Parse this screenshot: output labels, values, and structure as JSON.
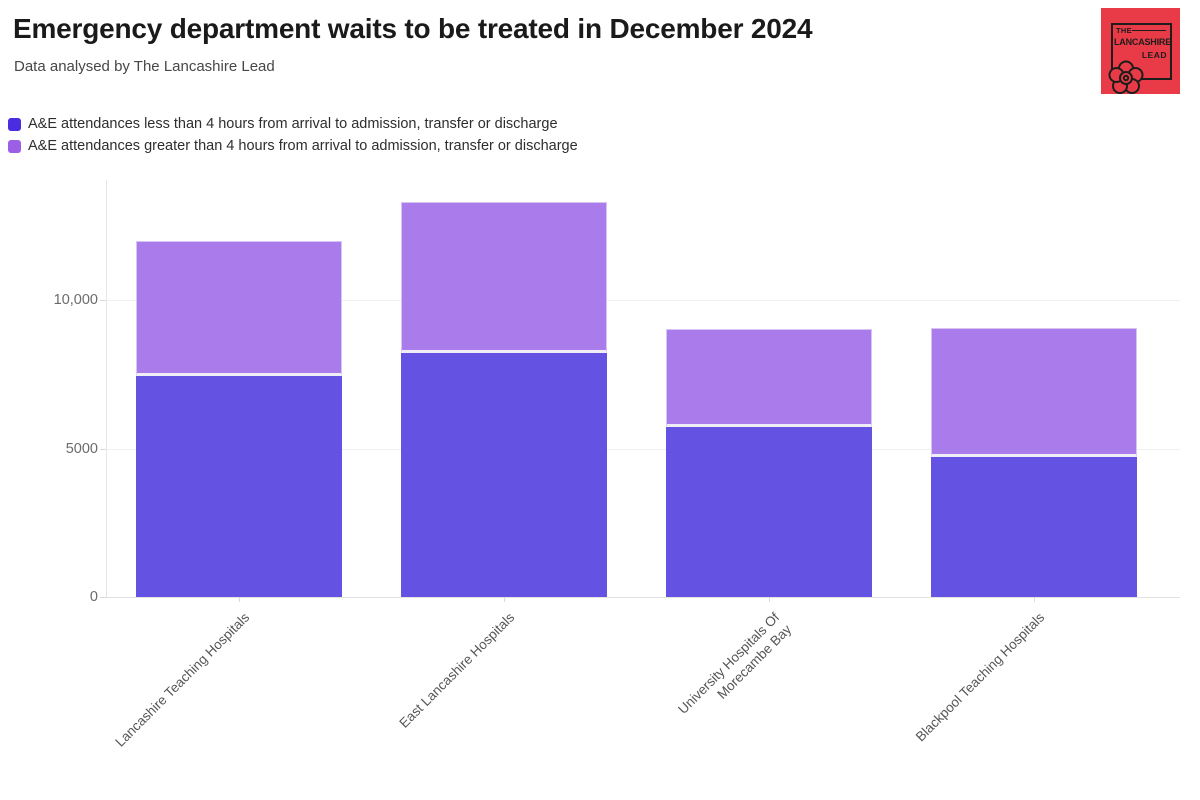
{
  "header": {
    "title": "Emergency department waits to be treated in December 2024",
    "subtitle": "Data analysed by The Lancashire Lead"
  },
  "logo": {
    "line1": "THE",
    "line2": "LANCASHIRE",
    "line3": "LEAD",
    "background_color": "#e93b47",
    "foreground_color": "#1d1d1b",
    "icon": "lancashire-rose-icon"
  },
  "legend": {
    "items": [
      {
        "label": "A&E attendances less than 4 hours from arrival to admission, transfer or discharge",
        "color": "#4a2de0"
      },
      {
        "label": "A&E attendances greater than 4 hours from arrival to admission, transfer or discharge",
        "color": "#9c5fe6"
      }
    ]
  },
  "chart_data": {
    "type": "bar",
    "stacked": true,
    "title": "Emergency department waits to be treated in December 2024",
    "subtitle": "Data analysed by The Lancashire Lead",
    "categories": [
      "Lancashire Teaching Hospitals",
      "East Lancashire Hospitals",
      "University Hospitals Of\nMorecambe Bay",
      "Blackpool Teaching Hospitals"
    ],
    "series": [
      {
        "name": "A&E attendances less than 4 hours from arrival to admission, transfer or discharge",
        "color": "#6453e2",
        "values": [
          7450,
          8200,
          5720,
          4700
        ]
      },
      {
        "name": "A&E attendances greater than 4 hours from arrival to admission, transfer or discharge",
        "color": "#aa7bea",
        "values": [
          4550,
          5100,
          3320,
          4360
        ]
      }
    ],
    "totals": [
      12000,
      13300,
      9040,
      9060
    ],
    "ytick_labels": [
      "0",
      "5000",
      "10,000"
    ],
    "ytick_values": [
      0,
      5000,
      10000
    ],
    "ylim": [
      0,
      14000
    ],
    "grid": true,
    "legend_position": "top-left",
    "xlabel": "",
    "ylabel": ""
  }
}
